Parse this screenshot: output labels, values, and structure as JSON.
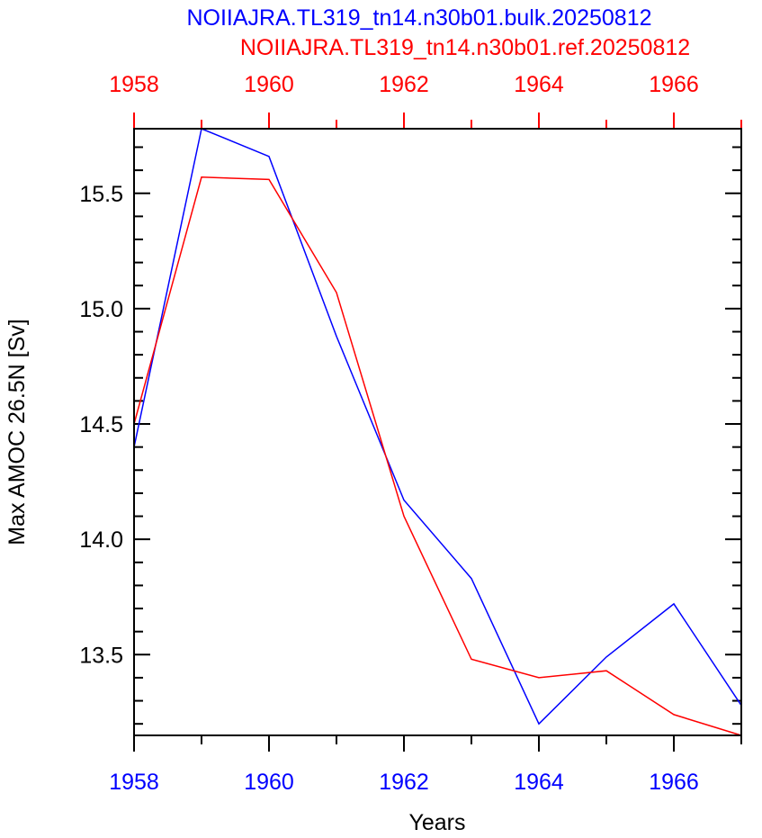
{
  "chart_data": {
    "type": "line",
    "titles": [
      {
        "text": "NOIIAJRA.TL319_tn14.n30b01.bulk.20250812",
        "color": "#0000ff"
      },
      {
        "text": "NOIIAJRA.TL319_tn14.n30b01.ref.20250812",
        "color": "#ff0000"
      }
    ],
    "xlabel": "Years",
    "ylabel": "Max AMOC 26.5N [Sv]",
    "xlim": [
      1958,
      1967
    ],
    "ylim": [
      13.15,
      15.78
    ],
    "x": [
      1958,
      1959,
      1960,
      1961,
      1962,
      1963,
      1964,
      1965,
      1966,
      1967
    ],
    "xticks": [
      1958,
      1960,
      1962,
      1964,
      1966
    ],
    "xtick_labels": [
      "1958",
      "1960",
      "1962",
      "1964",
      "1966"
    ],
    "yticks": [
      13.5,
      14.0,
      14.5,
      15.0,
      15.5
    ],
    "ytick_labels": [
      "13.5",
      "14.0",
      "14.5",
      "15.0",
      "15.5"
    ],
    "bottom_axis_color": "#0000ff",
    "top_axis_color": "#ff0000",
    "grid": false,
    "series": [
      {
        "name": "NOIIAJRA.TL319_tn14.n30b01.bulk.20250812",
        "color": "#0000ff",
        "values": [
          14.4,
          15.78,
          15.66,
          14.88,
          14.17,
          13.83,
          13.2,
          13.49,
          13.72,
          13.28
        ]
      },
      {
        "name": "NOIIAJRA.TL319_tn14.n30b01.ref.20250812",
        "color": "#ff0000",
        "values": [
          14.5,
          15.57,
          15.56,
          15.07,
          14.1,
          13.48,
          13.4,
          13.43,
          13.24,
          13.15
        ]
      }
    ]
  }
}
